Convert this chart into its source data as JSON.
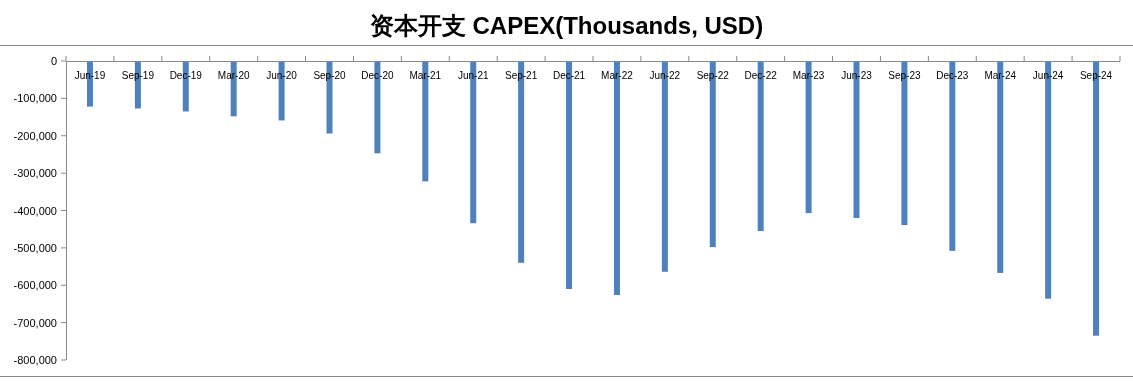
{
  "chart_data": {
    "type": "bar",
    "title": "资本开支 CAPEX(Thousands, USD)",
    "categories": [
      "Jun-19",
      "Sep-19",
      "Dec-19",
      "Mar-20",
      "Jun-20",
      "Sep-20",
      "Dec-20",
      "Mar-21",
      "Jun-21",
      "Sep-21",
      "Dec-21",
      "Mar-22",
      "Jun-22",
      "Sep-22",
      "Dec-22",
      "Mar-23",
      "Jun-23",
      "Sep-23",
      "Dec-23",
      "Mar-24",
      "Jun-24",
      "Sep-24"
    ],
    "series": [
      {
        "color": "#4f81bd",
        "values": [
          -122000,
          -127000,
          -135000,
          -148000,
          -159000,
          -194000,
          -247000,
          -322000,
          -434000,
          -540000,
          -610000,
          -626000,
          -564000,
          -498000,
          -455000,
          -407000,
          -420000,
          -439000,
          -508000,
          -567000,
          -636000,
          -735000
        ]
      }
    ],
    "ylim": [
      -800000,
      0
    ],
    "yticks": [
      {
        "value": 0,
        "label": "0"
      },
      {
        "value": -100000,
        "label": "-100,000"
      },
      {
        "value": -200000,
        "label": "-200,000"
      },
      {
        "value": -300000,
        "label": "-300,000"
      },
      {
        "value": -400000,
        "label": "-400,000"
      },
      {
        "value": -500000,
        "label": "-500,000"
      },
      {
        "value": -600000,
        "label": "-600,000"
      },
      {
        "value": -700000,
        "label": "-700,000"
      },
      {
        "value": -800000,
        "label": "-800,000"
      }
    ],
    "grid": false
  }
}
